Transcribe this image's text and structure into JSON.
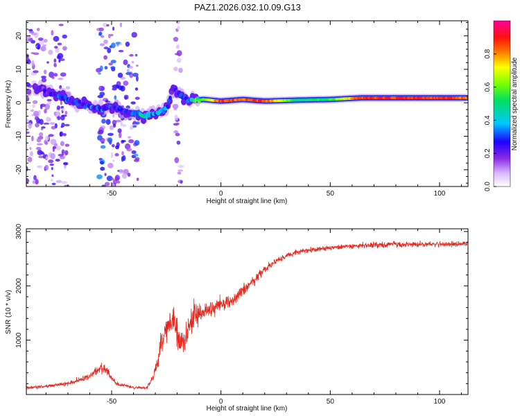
{
  "title": "PAZ1.2026.032.10.09.G13",
  "chart_data": [
    {
      "type": "heatmap",
      "xlabel": "Height of straight line (km)",
      "ylabel": "Frequency (Hz)",
      "xlim": [
        -89,
        113
      ],
      "ylim": [
        -25,
        24.5
      ],
      "xticks": [
        -50,
        0,
        50,
        100
      ],
      "xtick_labels": [
        "-50",
        "0",
        "50",
        "100"
      ],
      "yticks": [
        -20,
        -10,
        0,
        10,
        20
      ],
      "ytick_labels": [
        "-20",
        "-10",
        "0",
        "10",
        "20"
      ],
      "grid": false,
      "colorbar": {
        "label": "Normalized spectral amplitude",
        "range": [
          0,
          1
        ],
        "ticks": [
          0.0,
          0.2,
          0.4,
          0.6,
          0.8
        ],
        "tick_labels": [
          "0.0",
          "0.2",
          "0.4",
          "0.6",
          "0.8"
        ],
        "colormap": "rainbow (white-violet-blue-cyan-green-yellow-red-magenta)"
      },
      "ridge": [
        {
          "x": -83,
          "y": 4.5,
          "a": 0.2
        },
        {
          "x": -78,
          "y": 3.0,
          "a": 0.25
        },
        {
          "x": -72,
          "y": 1.5,
          "a": 0.3
        },
        {
          "x": -66,
          "y": 0.0,
          "a": 0.25
        },
        {
          "x": -60,
          "y": -1.0,
          "a": 0.3
        },
        {
          "x": -55,
          "y": -2.0,
          "a": 0.3
        },
        {
          "x": -50,
          "y": -1.0,
          "a": 0.25
        },
        {
          "x": -45,
          "y": -2.5,
          "a": 0.25
        },
        {
          "x": -40,
          "y": -3.0,
          "a": 0.3
        },
        {
          "x": -35,
          "y": -4.0,
          "a": 0.45
        },
        {
          "x": -30,
          "y": -3.0,
          "a": 0.35
        },
        {
          "x": -25,
          "y": -2.0,
          "a": 0.3
        },
        {
          "x": -22,
          "y": 4.0,
          "a": 0.2
        },
        {
          "x": -15,
          "y": 0.5,
          "a": 0.35
        },
        {
          "x": -8,
          "y": 1.0,
          "a": 0.6
        },
        {
          "x": 0,
          "y": 0.5,
          "a": 0.9
        },
        {
          "x": 10,
          "y": 1.0,
          "a": 0.85
        },
        {
          "x": 20,
          "y": 0.5,
          "a": 0.9
        },
        {
          "x": 35,
          "y": 0.8,
          "a": 0.5
        },
        {
          "x": 50,
          "y": 1.0,
          "a": 0.55
        },
        {
          "x": 65,
          "y": 1.5,
          "a": 0.9
        },
        {
          "x": 80,
          "y": 1.5,
          "a": 0.9
        },
        {
          "x": 95,
          "y": 1.5,
          "a": 0.9
        },
        {
          "x": 113,
          "y": 1.5,
          "a": 0.85
        }
      ],
      "noise_zones": [
        {
          "x0": -89,
          "x1": -70,
          "a": 0.2
        },
        {
          "x0": -56,
          "x1": -38,
          "a": 0.3
        },
        {
          "x0": -21,
          "x1": -18,
          "a": 0.15
        }
      ]
    },
    {
      "type": "line",
      "xlabel": "Height of straight line (km)",
      "ylabel": "SNR (10 * v/v)",
      "xlim": [
        -89,
        113
      ],
      "ylim": [
        0,
        3050
      ],
      "xticks": [
        -50,
        0,
        50,
        100
      ],
      "xtick_labels": [
        "-50",
        "0",
        "50",
        "100"
      ],
      "yticks": [
        1000,
        2000,
        3000
      ],
      "ytick_labels": [
        "1000",
        "2000",
        "3000"
      ],
      "grid": false,
      "series": [
        {
          "color": "#e8261c",
          "x": [
            -89,
            -80,
            -70,
            -60,
            -55,
            -52,
            -48,
            -40,
            -34,
            -31,
            -28,
            -25,
            -22,
            -20,
            -18,
            -15,
            -12,
            -10,
            -5,
            0,
            5,
            10,
            15,
            20,
            25,
            30,
            35,
            45,
            55,
            65,
            75,
            85,
            95,
            105,
            113
          ],
          "y": [
            120,
            150,
            200,
            330,
            500,
            420,
            200,
            130,
            120,
            300,
            800,
            1200,
            1400,
            1100,
            900,
            1200,
            1500,
            1500,
            1600,
            1650,
            1700,
            1900,
            2100,
            2300,
            2450,
            2550,
            2620,
            2680,
            2720,
            2740,
            2760,
            2760,
            2770,
            2760,
            2780
          ],
          "spread": [
            50,
            60,
            70,
            100,
            180,
            140,
            60,
            40,
            40,
            120,
            300,
            450,
            500,
            450,
            400,
            450,
            450,
            350,
            300,
            250,
            220,
            200,
            160,
            130,
            100,
            90,
            80,
            80,
            80,
            80,
            90,
            90,
            80,
            80,
            80
          ]
        }
      ]
    }
  ]
}
